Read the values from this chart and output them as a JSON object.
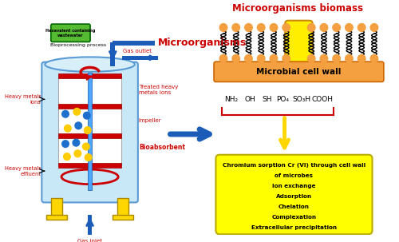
{
  "bg_color": "#ffffff",
  "microorganisms_label": "Microorganisms",
  "microorganisms_biomass_label": "Microorganisms biomass",
  "microbial_cell_wall_label": "Microbial cell wall",
  "functional_groups_parts": [
    "NH₂",
    "OH",
    "SH",
    "PO₄",
    "SO₃H",
    "COOH"
  ],
  "functional_groups_x": [
    5.6,
    6.1,
    6.55,
    6.95,
    7.45,
    8.0
  ],
  "box_lines": [
    "Chromium sorption Cr (VI) through cell wall",
    "of microbes",
    "Ion exchange",
    "Adsorption",
    "Chelation",
    "Complexation",
    "Extracellular precipitation"
  ],
  "wastewater_label": "Hexavalent containing\nwastewater",
  "bioprocessing_label": "Bioprocessing process",
  "gas_outlet_label": "Gas outlet",
  "gas_inlet_label": "Gas inlet",
  "heavy_metals_ions_label": "Heavy metals\nions",
  "heavy_metals_effluent_label": "Heavy metals\neffluent",
  "treated_label": "Treated heavy\nmetals ions",
  "impeller_label": "Impeller",
  "bioabsorbent_label": "Bioabsorbent",
  "tank_color": "#c8e8f8",
  "tank_border": "#5b9bd5",
  "yellow_box_color": "#ffff00",
  "orange_bar_color": "#f4a040",
  "arrow_blue": "#1a5cb8",
  "red_color": "#cc0000",
  "yellow_color": "#ffd700",
  "orange_head_color": "#f4a040"
}
